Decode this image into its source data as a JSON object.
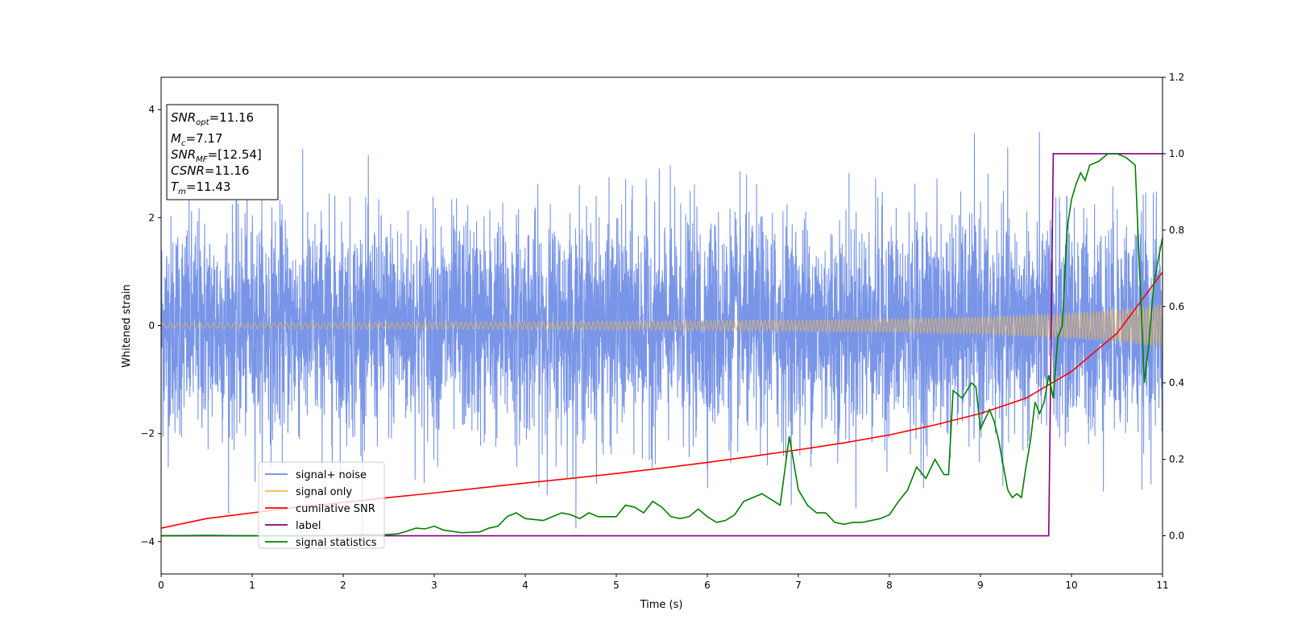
{
  "chart_data": {
    "type": "line",
    "xlabel": "Time (s)",
    "ylabel": "Whitened strain",
    "xlim": [
      0,
      11
    ],
    "ylim": [
      -4.6,
      4.6
    ],
    "y2lim": [
      -0.1,
      1.2
    ],
    "x_ticks": [
      0,
      1,
      2,
      3,
      4,
      5,
      6,
      7,
      8,
      9,
      10,
      11
    ],
    "y_ticks": [
      -4,
      -2,
      0,
      2,
      4
    ],
    "y2_ticks": [
      0.0,
      0.2,
      0.4,
      0.6,
      0.8,
      1.0,
      1.2
    ],
    "x_tick_labels": [
      "0",
      "1",
      "2",
      "3",
      "4",
      "5",
      "6",
      "7",
      "8",
      "9",
      "10",
      "11"
    ],
    "y_tick_labels": [
      "−4",
      "−2",
      "0",
      "2",
      "4"
    ],
    "y2_tick_labels": [
      "0.0",
      "0.2",
      "0.4",
      "0.6",
      "0.8",
      "1.0",
      "1.2"
    ],
    "grid": false,
    "legend_position": "lower-left",
    "annotation": {
      "position": "top-left",
      "lines": [
        {
          "sym": "SNR",
          "sub": "opt",
          "value": "=11.16"
        },
        {
          "sym": "M",
          "sub": "c",
          "value": "=7.17"
        },
        {
          "sym": "SNR",
          "sub": "MF",
          "value": "=[12.54]"
        },
        {
          "sym": "CSNR",
          "sub": "",
          "value": "=11.16"
        },
        {
          "sym": "T",
          "sub": "m",
          "value": "=11.43"
        }
      ]
    },
    "series": [
      {
        "name": "signal+ noise",
        "axis": "left",
        "color": "#6a89e4",
        "kind": "noise",
        "sigma": 1.0,
        "peak_abs_approx": 4.15
      },
      {
        "name": "signal only",
        "axis": "left",
        "color": "#f5b84a",
        "kind": "chirp",
        "amplitude_envelope": {
          "x": [
            0,
            2,
            4,
            6,
            8,
            9,
            10,
            10.5,
            11
          ],
          "y": [
            0.05,
            0.06,
            0.07,
            0.09,
            0.12,
            0.16,
            0.24,
            0.3,
            0.4
          ]
        }
      },
      {
        "name": "cumilative SNR",
        "axis": "right",
        "color": "#ff0000",
        "x": [
          0,
          0.5,
          1,
          1.5,
          2,
          2.5,
          3,
          3.5,
          4,
          4.5,
          5,
          5.5,
          6,
          6.5,
          7,
          7.5,
          8,
          8.5,
          9,
          9.5,
          10,
          10.5,
          11
        ],
        "y": [
          0.02,
          0.045,
          0.06,
          0.075,
          0.087,
          0.1,
          0.112,
          0.125,
          0.138,
          0.15,
          0.163,
          0.177,
          0.192,
          0.208,
          0.225,
          0.243,
          0.264,
          0.29,
          0.32,
          0.36,
          0.43,
          0.53,
          0.69
        ]
      },
      {
        "name": "label",
        "axis": "right",
        "color": "#800080",
        "x": [
          0,
          9.75,
          9.8,
          11
        ],
        "y": [
          0,
          0,
          1,
          1
        ]
      },
      {
        "name": "signal statistics",
        "axis": "right",
        "color": "#008000",
        "x": [
          0,
          0.5,
          1,
          1.5,
          2,
          2.2,
          2.4,
          2.6,
          2.7,
          2.8,
          2.9,
          3.0,
          3.1,
          3.3,
          3.5,
          3.6,
          3.7,
          3.8,
          3.9,
          4.0,
          4.2,
          4.4,
          4.5,
          4.6,
          4.7,
          4.8,
          5.0,
          5.1,
          5.2,
          5.3,
          5.4,
          5.5,
          5.6,
          5.7,
          5.8,
          5.9,
          6.0,
          6.1,
          6.2,
          6.3,
          6.4,
          6.5,
          6.6,
          6.7,
          6.8,
          6.9,
          7.0,
          7.1,
          7.2,
          7.3,
          7.4,
          7.5,
          7.6,
          7.7,
          7.8,
          7.9,
          8.0,
          8.1,
          8.2,
          8.3,
          8.4,
          8.5,
          8.6,
          8.65,
          8.7,
          8.8,
          8.9,
          8.95,
          9.0,
          9.1,
          9.15,
          9.2,
          9.3,
          9.35,
          9.4,
          9.45,
          9.5,
          9.55,
          9.6,
          9.65,
          9.7,
          9.75,
          9.8,
          9.85,
          9.9,
          9.95,
          10.0,
          10.05,
          10.1,
          10.15,
          10.2,
          10.3,
          10.4,
          10.5,
          10.6,
          10.7,
          10.8,
          10.85,
          10.9,
          10.95,
          11.0
        ],
        "y": [
          0.0,
          0.001,
          0.0,
          0.0,
          0.001,
          0.003,
          0.002,
          0.005,
          0.012,
          0.02,
          0.018,
          0.025,
          0.015,
          0.008,
          0.01,
          0.02,
          0.025,
          0.05,
          0.06,
          0.045,
          0.04,
          0.06,
          0.055,
          0.045,
          0.06,
          0.05,
          0.05,
          0.08,
          0.075,
          0.06,
          0.09,
          0.075,
          0.05,
          0.045,
          0.05,
          0.07,
          0.05,
          0.035,
          0.04,
          0.055,
          0.09,
          0.1,
          0.11,
          0.095,
          0.08,
          0.26,
          0.12,
          0.08,
          0.06,
          0.06,
          0.035,
          0.03,
          0.035,
          0.035,
          0.04,
          0.045,
          0.055,
          0.09,
          0.12,
          0.18,
          0.15,
          0.2,
          0.16,
          0.16,
          0.38,
          0.36,
          0.4,
          0.39,
          0.28,
          0.33,
          0.3,
          0.25,
          0.12,
          0.1,
          0.11,
          0.1,
          0.18,
          0.25,
          0.35,
          0.32,
          0.35,
          0.42,
          0.36,
          0.52,
          0.55,
          0.8,
          0.88,
          0.92,
          0.95,
          0.93,
          0.97,
          0.98,
          1.0,
          1.0,
          0.99,
          0.97,
          0.4,
          0.5,
          0.65,
          0.72,
          0.78
        ]
      }
    ]
  }
}
